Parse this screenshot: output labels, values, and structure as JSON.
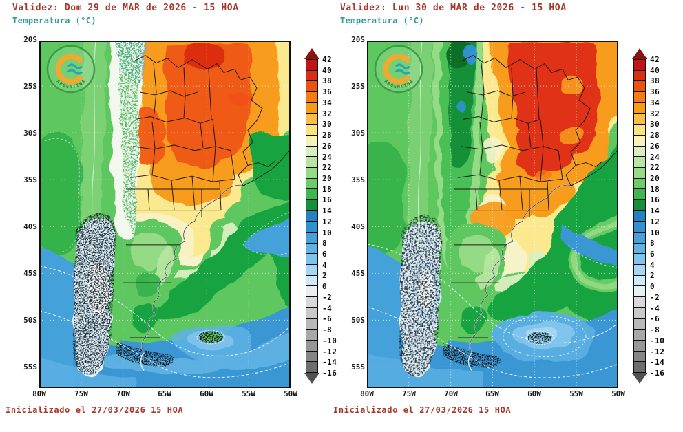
{
  "panels": [
    {
      "id": "day1",
      "title": "Validez: Dom 29 de MAR de 2026 - 15 HOA",
      "subtitle": "Temperatura (°C)",
      "footer": "Inicializado el 27/03/2026 15 HOA"
    },
    {
      "id": "day2",
      "title": "Validez: Lun 30 de MAR de 2026 - 15 HOA",
      "subtitle": "Temperatura (°C)",
      "footer": "Inicializado el 27/03/2026 15 HOA"
    }
  ],
  "axes": {
    "lat_labels": [
      "20S",
      "25S",
      "30S",
      "35S",
      "40S",
      "45S",
      "50S",
      "55S"
    ],
    "lon_labels": [
      "80W",
      "75W",
      "70W",
      "65W",
      "60W",
      "55W",
      "50W"
    ]
  },
  "legend": {
    "unit": "°C",
    "tick_values": [
      42,
      40,
      38,
      36,
      34,
      32,
      30,
      28,
      26,
      24,
      22,
      20,
      18,
      16,
      14,
      12,
      10,
      8,
      6,
      4,
      2,
      0,
      -2,
      -4,
      -6,
      -8,
      -10,
      -12,
      -14,
      -16
    ],
    "cell_colors": [
      "#c21414",
      "#dc2d10",
      "#ec5212",
      "#f47c15",
      "#f89b17",
      "#fabd49",
      "#fbe37e",
      "#f6f2b8",
      "#d9efbf",
      "#b9e5a2",
      "#95da85",
      "#6bcd67",
      "#3cb84e",
      "#149038",
      "#2380c4",
      "#3191cf",
      "#44a1da",
      "#5fb2e3",
      "#80c3ec",
      "#a5d6f4",
      "#cfe9fa",
      "#e9eef1",
      "#d9d9d9",
      "#c9c9c9",
      "#b9b9b9",
      "#a8a8a8",
      "#979797",
      "#858585",
      "#6d6d6d"
    ],
    "above_max_color": "#8d0f0f",
    "below_min_color": "#515151"
  },
  "logo": {
    "text": "ARGENTINA"
  },
  "colors": {
    "title": "#a8382c",
    "subtitle": "#2e9c9c",
    "footer": "#a8382c",
    "axis_labels": "#1a1a1a",
    "frame": "#101010",
    "ocean_green": "#5fc75f"
  }
}
